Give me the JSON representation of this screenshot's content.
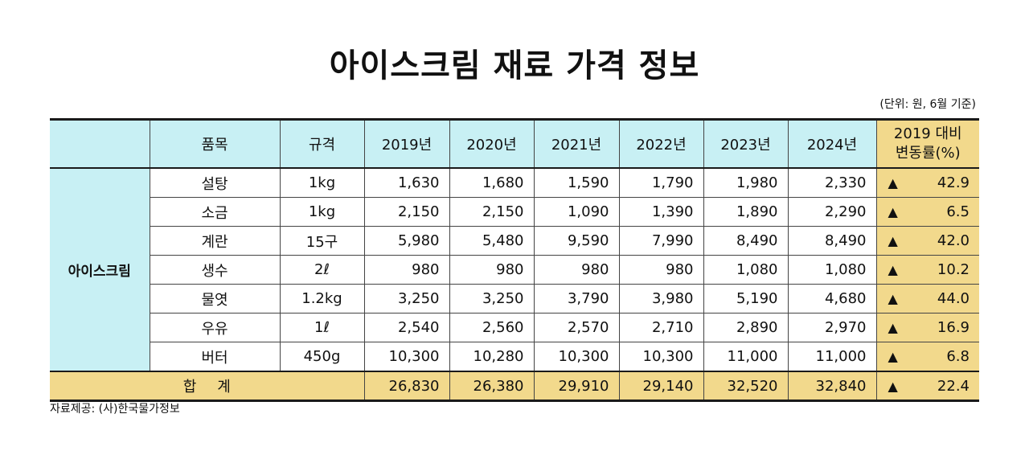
{
  "title": "아이스크림 재료 가격 정보",
  "unit_note": "(단위: 원, 6월 기준)",
  "headers": {
    "item": "품목",
    "spec": "규격",
    "years": [
      "2019년",
      "2020년",
      "2021년",
      "2022년",
      "2023년",
      "2024년"
    ],
    "change_line1": "2019 대비",
    "change_line2": "변동률(%)"
  },
  "category": "아이스크림",
  "rows": [
    {
      "item": "설탕",
      "spec": "1kg",
      "values": [
        "1,630",
        "1,680",
        "1,590",
        "1,790",
        "1,980",
        "2,330"
      ],
      "change": "42.9"
    },
    {
      "item": "소금",
      "spec": "1kg",
      "values": [
        "2,150",
        "2,150",
        "1,090",
        "1,390",
        "1,890",
        "2,290"
      ],
      "change": "6.5"
    },
    {
      "item": "계란",
      "spec": "15구",
      "values": [
        "5,980",
        "5,480",
        "9,590",
        "7,990",
        "8,490",
        "8,490"
      ],
      "change": "42.0"
    },
    {
      "item": "생수",
      "spec": "2ℓ",
      "values": [
        "980",
        "980",
        "980",
        "980",
        "1,080",
        "1,080"
      ],
      "change": "10.2"
    },
    {
      "item": "물엿",
      "spec": "1.2kg",
      "values": [
        "3,250",
        "3,250",
        "3,790",
        "3,980",
        "5,190",
        "4,680"
      ],
      "change": "44.0"
    },
    {
      "item": "우유",
      "spec": "1ℓ",
      "values": [
        "2,540",
        "2,560",
        "2,570",
        "2,710",
        "2,890",
        "2,970"
      ],
      "change": "16.9"
    },
    {
      "item": "버터",
      "spec": "450g",
      "values": [
        "10,300",
        "10,280",
        "10,300",
        "10,300",
        "11,000",
        "11,000"
      ],
      "change": "6.8"
    }
  ],
  "total": {
    "label": "합계",
    "values": [
      "26,830",
      "26,380",
      "29,910",
      "29,140",
      "32,520",
      "32,840"
    ],
    "change": "22.4"
  },
  "change_symbol": "▲",
  "source": "자료제공: (사)한국물가정보",
  "colors": {
    "header_bg": "#c8f0f4",
    "highlight_bg": "#f2d98c"
  }
}
